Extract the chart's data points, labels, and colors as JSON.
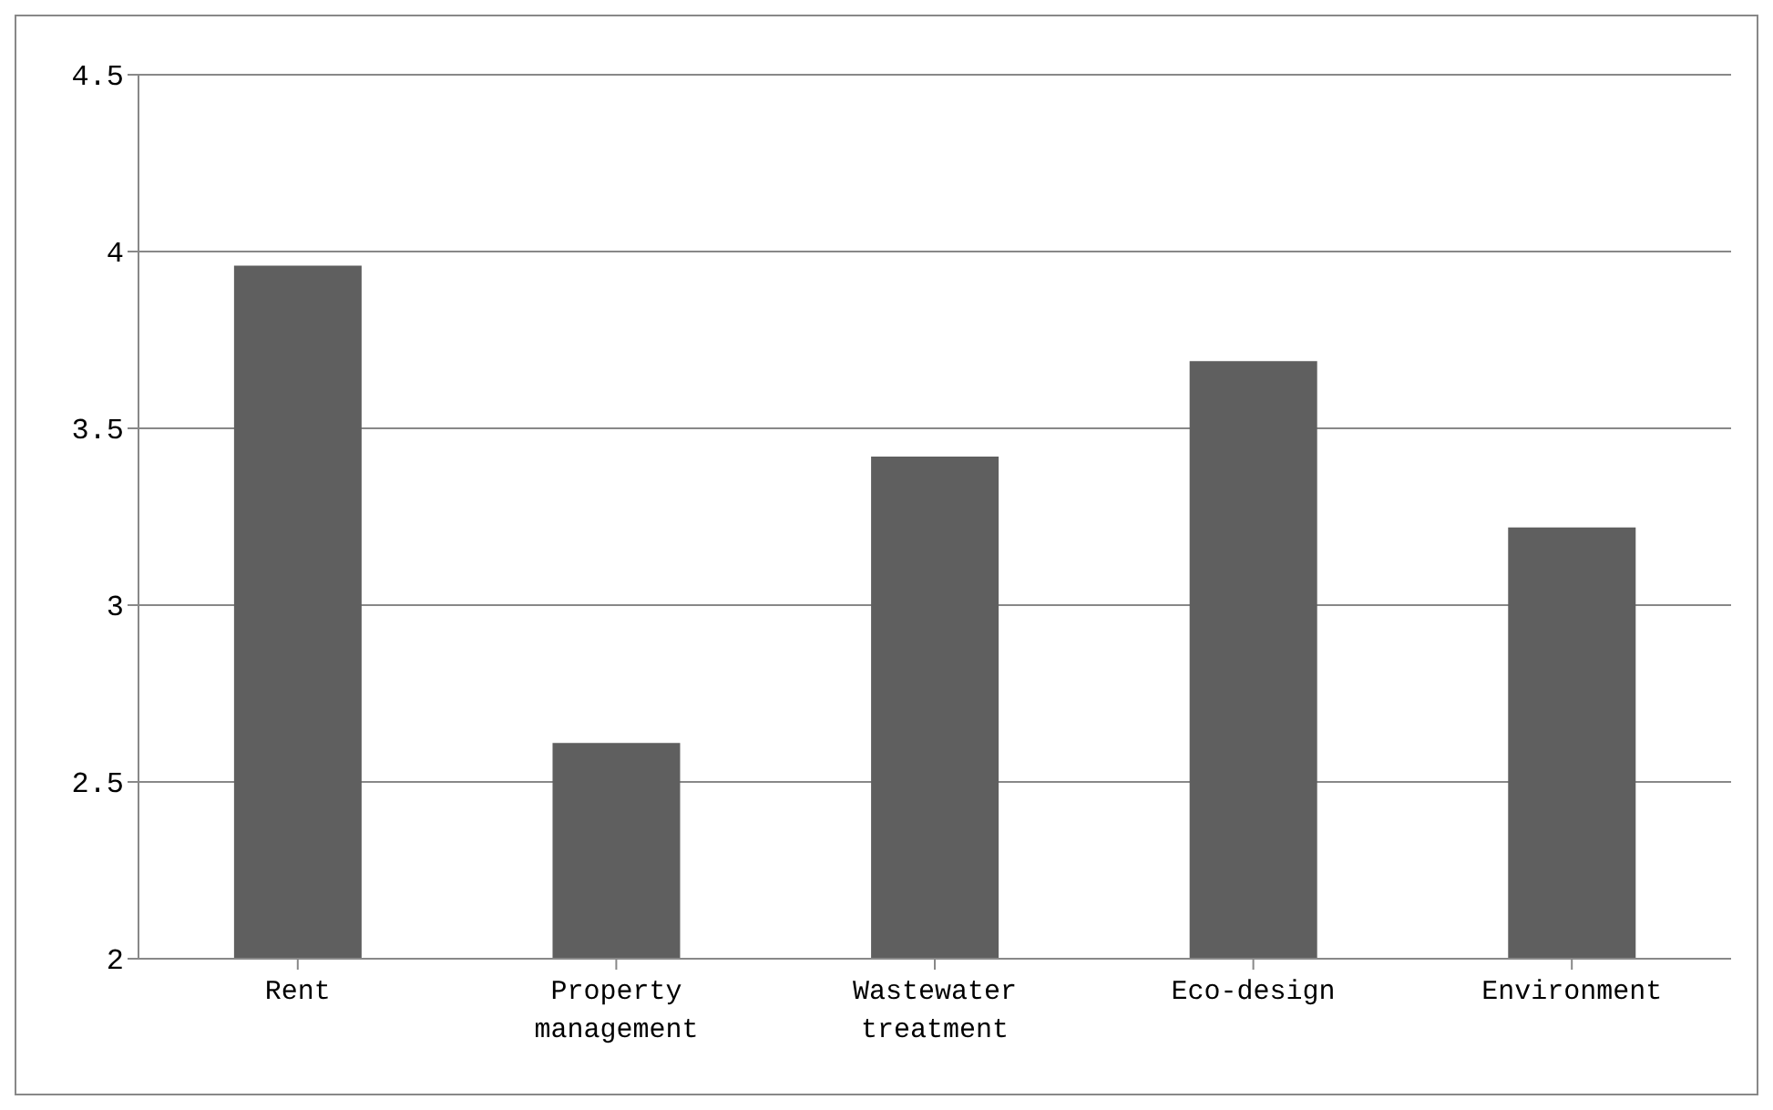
{
  "chart_data": {
    "type": "bar",
    "categories": [
      "Rent",
      "Property management",
      "Wastewater treatment",
      "Eco-design",
      "Environment"
    ],
    "values": [
      3.96,
      2.61,
      3.42,
      3.69,
      3.22
    ],
    "color": "#5f5f5f",
    "ylim": [
      2,
      4.5
    ],
    "yticks": [
      2,
      2.5,
      3,
      3.5,
      4,
      4.5
    ],
    "grid": "y"
  }
}
